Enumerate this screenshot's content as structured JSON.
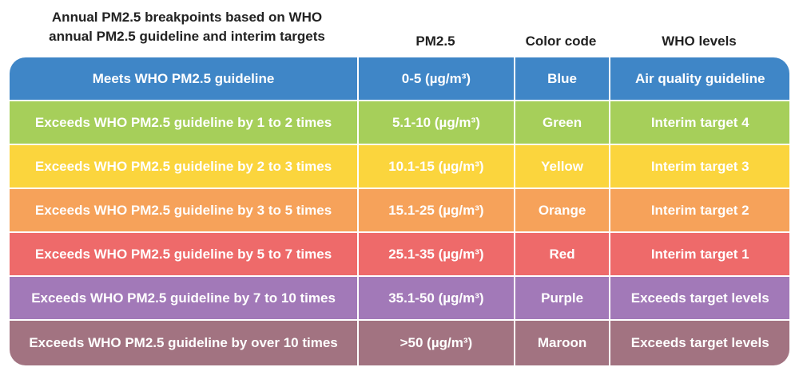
{
  "header": {
    "title_line1": "Annual PM2.5 breakpoints based on WHO",
    "title_line2": "annual PM2.5 guideline and interim targets",
    "col_pm": "PM2.5",
    "col_color": "Color code",
    "col_who": "WHO levels"
  },
  "rows": [
    {
      "desc": "Meets WHO PM2.5 guideline",
      "pm": "0-5 (µg/m³)",
      "color": "Blue",
      "who": "Air quality guideline",
      "bg": "#3f86c7"
    },
    {
      "desc": "Exceeds WHO PM2.5 guideline by 1 to 2 times",
      "pm": "5.1-10 (µg/m³)",
      "color": "Green",
      "who": "Interim target 4",
      "bg": "#a6cf5a"
    },
    {
      "desc": "Exceeds WHO PM2.5 guideline by 2 to 3 times",
      "pm": "10.1-15 (µg/m³)",
      "color": "Yellow",
      "who": "Interim target 3",
      "bg": "#fbd53d"
    },
    {
      "desc": "Exceeds WHO PM2.5 guideline by 3 to 5 times",
      "pm": "15.1-25 (µg/m³)",
      "color": "Orange",
      "who": "Interim target 2",
      "bg": "#f6a25a"
    },
    {
      "desc": "Exceeds WHO PM2.5 guideline by 5 to 7 times",
      "pm": "25.1-35 (µg/m³)",
      "color": "Red",
      "who": "Interim target 1",
      "bg": "#ee6a6a"
    },
    {
      "desc": "Exceeds WHO PM2.5 guideline by 7 to 10 times",
      "pm": "35.1-50 (µg/m³)",
      "color": "Purple",
      "who": "Exceeds target levels",
      "bg": "#a279b8"
    },
    {
      "desc": "Exceeds WHO PM2.5 guideline by over 10 times",
      "pm": ">50 (µg/m³)",
      "color": "Maroon",
      "who": "Exceeds target levels",
      "bg": "#a27381"
    }
  ]
}
